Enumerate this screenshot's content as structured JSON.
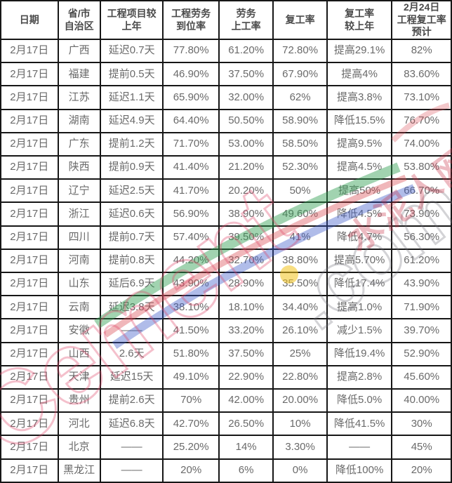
{
  "table": {
    "columns": [
      {
        "label": "日期"
      },
      {
        "label": "省/市\n自治区"
      },
      {
        "label": "工程项目较\n上年"
      },
      {
        "label": "工程劳务\n到位率"
      },
      {
        "label": "劳务\n上工率"
      },
      {
        "label": "复工率"
      },
      {
        "label": "复工率\n较上年"
      },
      {
        "label": "2月24日\n工程复工率\n预计"
      }
    ],
    "rows": [
      [
        "2月17日",
        "广西",
        "延迟0.7天",
        "77.80%",
        "61.20%",
        "72.80%",
        "提高29.1%",
        "82%"
      ],
      [
        "2月17日",
        "福建",
        "提前0.5天",
        "46.90%",
        "37.50%",
        "67.90%",
        "提高4%",
        "83.60%"
      ],
      [
        "2月17日",
        "江苏",
        "延迟1.1天",
        "65.90%",
        "32.00%",
        "62%",
        "提高3.8%",
        "73.10%"
      ],
      [
        "2月17日",
        "湖南",
        "延迟4.9天",
        "64.40%",
        "50.50%",
        "58.90%",
        "降低15.5%",
        "76.70%"
      ],
      [
        "2月17日",
        "广东",
        "提前1.2天",
        "71.70%",
        "53.00%",
        "58.50%",
        "提高9.5%",
        "74.00%"
      ],
      [
        "2月17日",
        "陕西",
        "提前0.9天",
        "41.40%",
        "21.20%",
        "52.30%",
        "提高4.5%",
        "53.80%"
      ],
      [
        "2月17日",
        "辽宁",
        "延迟2.5天",
        "41.70%",
        "20.20%",
        "50%",
        "提高50%",
        "66.70%"
      ],
      [
        "2月17日",
        "浙江",
        "延迟0.6天",
        "56.90%",
        "38.90%",
        "49.60%",
        "降低4.5%",
        "73.90%"
      ],
      [
        "2月17日",
        "四川",
        "提前0.7天",
        "57.40%",
        "39.50%",
        "41%",
        "降低4.7%",
        "56.30%"
      ],
      [
        "2月17日",
        "河南",
        "提前0.8天",
        "44.20%",
        "32.70%",
        "38.80%",
        "提高5.70%",
        "61.20%"
      ],
      [
        "2月17日",
        "山东",
        "延后6.9天",
        "43.90%",
        "28.90%",
        "35.50%",
        "降低17.4%",
        "43.90%"
      ],
      [
        "2月17日",
        "云南",
        "延迟3.8天",
        "38.10%",
        "18.10%",
        "34.40%",
        "提高1.0%",
        "71.90%"
      ],
      [
        "2月17日",
        "安徽",
        "——",
        "41.50%",
        "33.20%",
        "26.10%",
        "减少1.5%",
        "39.70%"
      ],
      [
        "2月17日",
        "山西",
        "2.6天",
        "51.80%",
        "37.50%",
        "25%",
        "降低19.4%",
        "52.90%"
      ],
      [
        "2月17日",
        "天津",
        "延迟15天",
        "49.10%",
        "22.90%",
        "22.80%",
        "提高2.8%",
        "45.60%"
      ],
      [
        "2月17日",
        "贵州",
        "提前2.6天",
        "70%",
        "42.00%",
        "20.00%",
        "降低5.0%",
        "40.00%"
      ],
      [
        "2月17日",
        "河北",
        "延迟6.8天",
        "42.70%",
        "26.50%",
        "10%",
        "降低41.5%",
        "30%"
      ],
      [
        "2月17日",
        "北京",
        "——",
        "25.20%",
        "14%",
        "3.30%",
        "——",
        "45%"
      ],
      [
        "2月17日",
        "黑龙江",
        "——",
        "20%",
        "6%",
        "0%",
        "降低100%",
        "20%"
      ]
    ]
  },
  "watermark": {
    "brand_text": "Cement",
    "domain_text": ".com",
    "cn_text": "水泥人网"
  },
  "colors": {
    "border": "#161616",
    "cell_text": "#6a6a6a",
    "header_text": "#4a4a4a",
    "wm_pink": "#df4669",
    "wm_gray": "#6e6e78",
    "wm_cn_red": "#c72c42",
    "swoosh_green": "#2f9e4f",
    "swoosh_red": "#d94a52",
    "swoosh_blue": "#3a57c9",
    "swoosh_yellow": "#f2c21c"
  }
}
